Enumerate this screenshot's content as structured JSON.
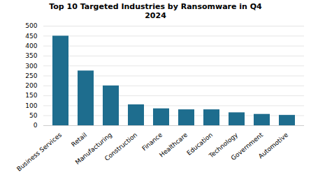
{
  "chart_data": {
    "type": "bar",
    "title": "Top 10 Targeted Industries by Ransomware in Q4\n2024",
    "categories": [
      "Business Services",
      "Retail",
      "Manufacturing",
      "Construction",
      "Finance",
      "Healthcare",
      "Education",
      "Technology",
      "Government",
      "Automotive"
    ],
    "values": [
      450,
      275,
      200,
      105,
      85,
      80,
      80,
      65,
      57,
      52
    ],
    "color": "#1e6d8e",
    "ylim": [
      0,
      500
    ],
    "yticks": [
      0,
      50,
      100,
      150,
      200,
      250,
      300,
      350,
      400,
      450,
      500
    ],
    "grid": true
  }
}
